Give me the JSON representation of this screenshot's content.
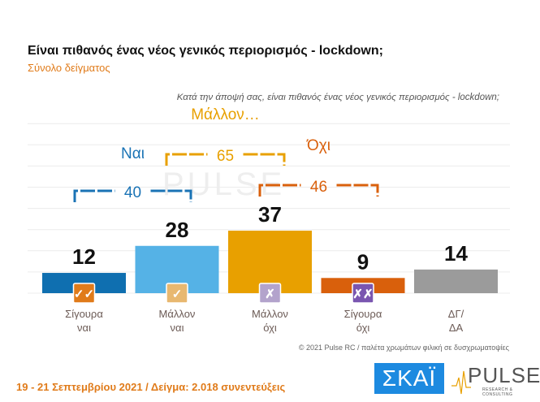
{
  "title": "Είναι πιθανός ένας νέος γενικός περιορισμός - lockdown;",
  "subtitle": "Σύνολο δείγματος",
  "chart_data": {
    "type": "bar",
    "title": "Κατά την άποψή σας, είναι πιθανός ένας νέος γενικός περιορισμός - lockdown;",
    "categories": [
      "Σίγουρα ναι",
      "Μάλλον ναι",
      "Μάλλον όχι",
      "Σίγουρα όχι",
      "ΔΓ/ ΔΑ"
    ],
    "category_lines": [
      [
        "Σίγουρα",
        "ναι"
      ],
      [
        "Μάλλον",
        "ναι"
      ],
      [
        "Μάλλον",
        "όχι"
      ],
      [
        "Σίγουρα",
        "όχι"
      ],
      [
        "ΔΓ/",
        "ΔΑ"
      ]
    ],
    "values": [
      12,
      28,
      37,
      9,
      14
    ],
    "colors": [
      "#0f6fb0",
      "#55b2e6",
      "#e8a000",
      "#d9600c",
      "#9b9b9b"
    ],
    "icons": [
      {
        "name": "double-check-icon",
        "glyph": "✓✓",
        "color": "#e07b1a"
      },
      {
        "name": "check-icon",
        "glyph": "✓",
        "color": "#e8b870"
      },
      {
        "name": "cross-icon",
        "glyph": "✗",
        "color": "#b3a3cc"
      },
      {
        "name": "double-cross-icon",
        "glyph": "✗✗",
        "color": "#7a56b0"
      },
      null
    ],
    "ylim": [
      0,
      40
    ],
    "grid": true,
    "groups": [
      {
        "label": "Ναι",
        "value": "40",
        "color": "#1a73b5"
      },
      {
        "label": "Μάλλον…",
        "value": "65",
        "color": "#e8a000"
      },
      {
        "label": "Όχι",
        "value": "46",
        "color": "#d9600c"
      }
    ]
  },
  "copyright": "© 2021 Pulse RC  /  παλέτα χρωμάτων φιλική σε δυσχρωματοψίες",
  "footer": "19 - 21 Σεπτεμβρίου 2021  /  Δείγμα:  2.018 συνεντεύξεις",
  "logos": {
    "skai": "ΣΚΑΪ",
    "pulse": "PULSE",
    "pulse_sub": "RESEARCH & CONSULTING"
  }
}
